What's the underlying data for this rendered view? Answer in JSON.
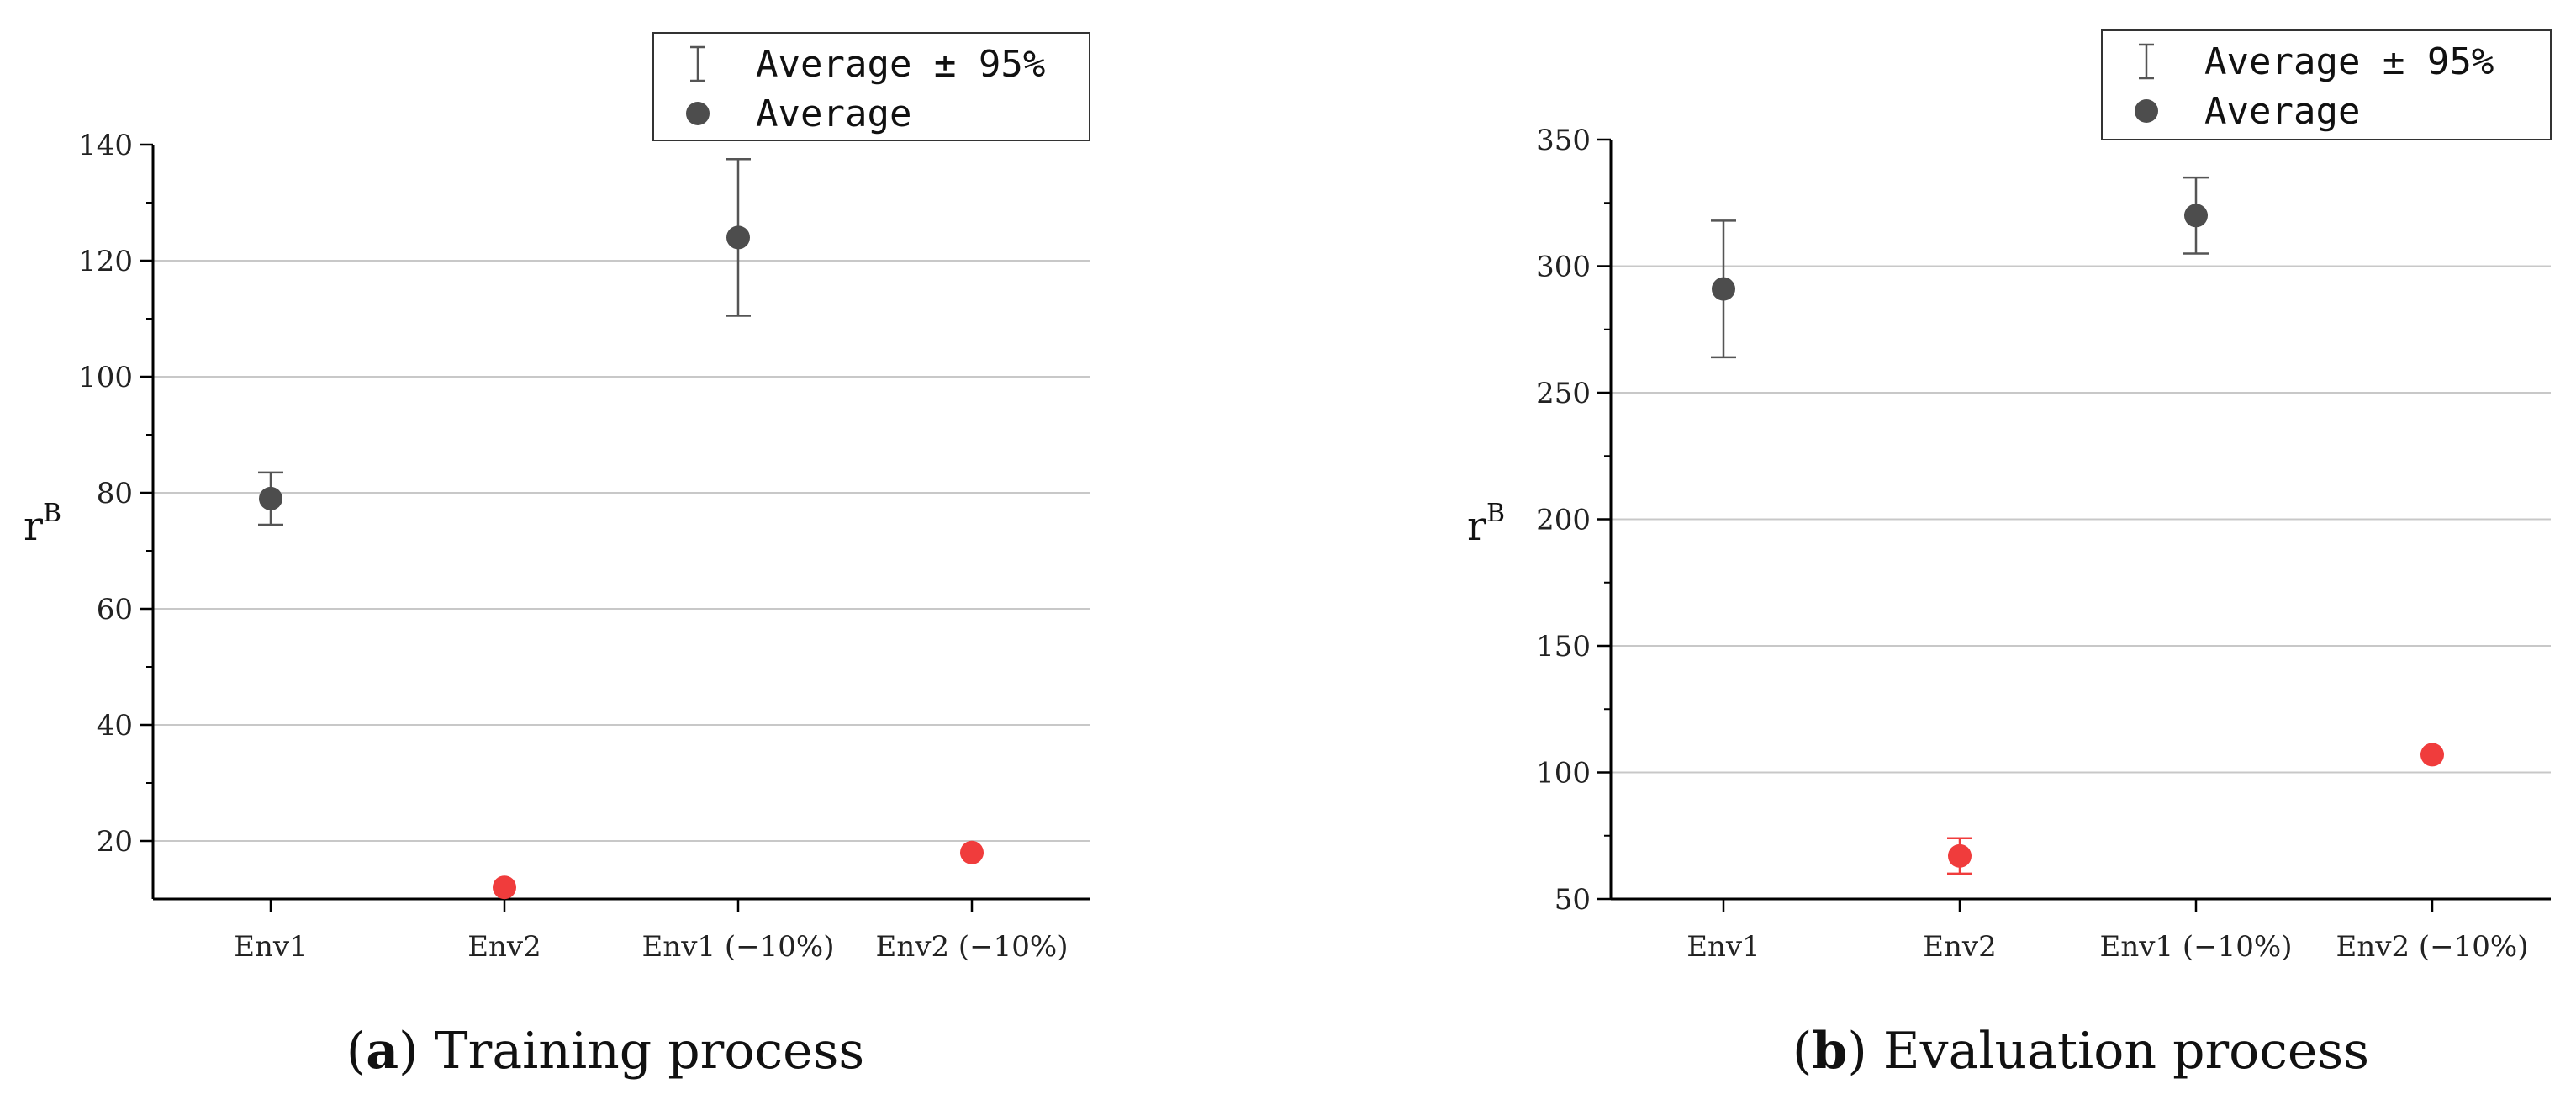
{
  "colors": {
    "average": "#4d4d4d",
    "highlight": "#f03c3c",
    "grid": "#c8c8c8",
    "axis": "#000000",
    "errorbar": "#555555"
  },
  "legend": {
    "errorbar_label": "Average ± 95%",
    "average_label": "Average",
    "errorbar_icon": "errorbar-icon",
    "average_icon": "filled-circle-icon"
  },
  "chart_data": [
    {
      "type": "scatter",
      "title": "",
      "caption_label": "a",
      "caption_text": " Training process",
      "ylabel_main": "r",
      "ylabel_sup": "B",
      "xlabel": "",
      "categories": [
        "Env1",
        "Env2",
        "Env1 (−10%)",
        "Env2 (−10%)"
      ],
      "values": [
        79,
        12,
        124,
        18
      ],
      "ci_low": [
        74.5,
        null,
        110.5,
        null
      ],
      "ci_high": [
        83.5,
        null,
        137.5,
        null
      ],
      "highlight": [
        false,
        true,
        false,
        true
      ],
      "ylim": [
        10,
        140
      ],
      "yticks": [
        20,
        40,
        60,
        80,
        100,
        120,
        140
      ],
      "ygrid": [
        20,
        40,
        60,
        80,
        100,
        120
      ],
      "yminor_step": 10,
      "grid": true,
      "legend_position": "top-right"
    },
    {
      "type": "scatter",
      "title": "",
      "caption_label": "b",
      "caption_text": " Evaluation process",
      "ylabel_main": "r",
      "ylabel_sup": "B",
      "xlabel": "",
      "categories": [
        "Env1",
        "Env2",
        "Env1 (−10%)",
        "Env2 (−10%)"
      ],
      "values": [
        291,
        67,
        320,
        107
      ],
      "ci_low": [
        264,
        60,
        305,
        null
      ],
      "ci_high": [
        318,
        74,
        335,
        null
      ],
      "highlight": [
        false,
        true,
        false,
        true
      ],
      "ylim": [
        50,
        350
      ],
      "yticks": [
        50,
        100,
        150,
        200,
        250,
        300,
        350
      ],
      "ygrid": [
        100,
        150,
        200,
        250,
        300
      ],
      "yminor_step": 25,
      "grid": true,
      "legend_position": "top-right"
    }
  ]
}
